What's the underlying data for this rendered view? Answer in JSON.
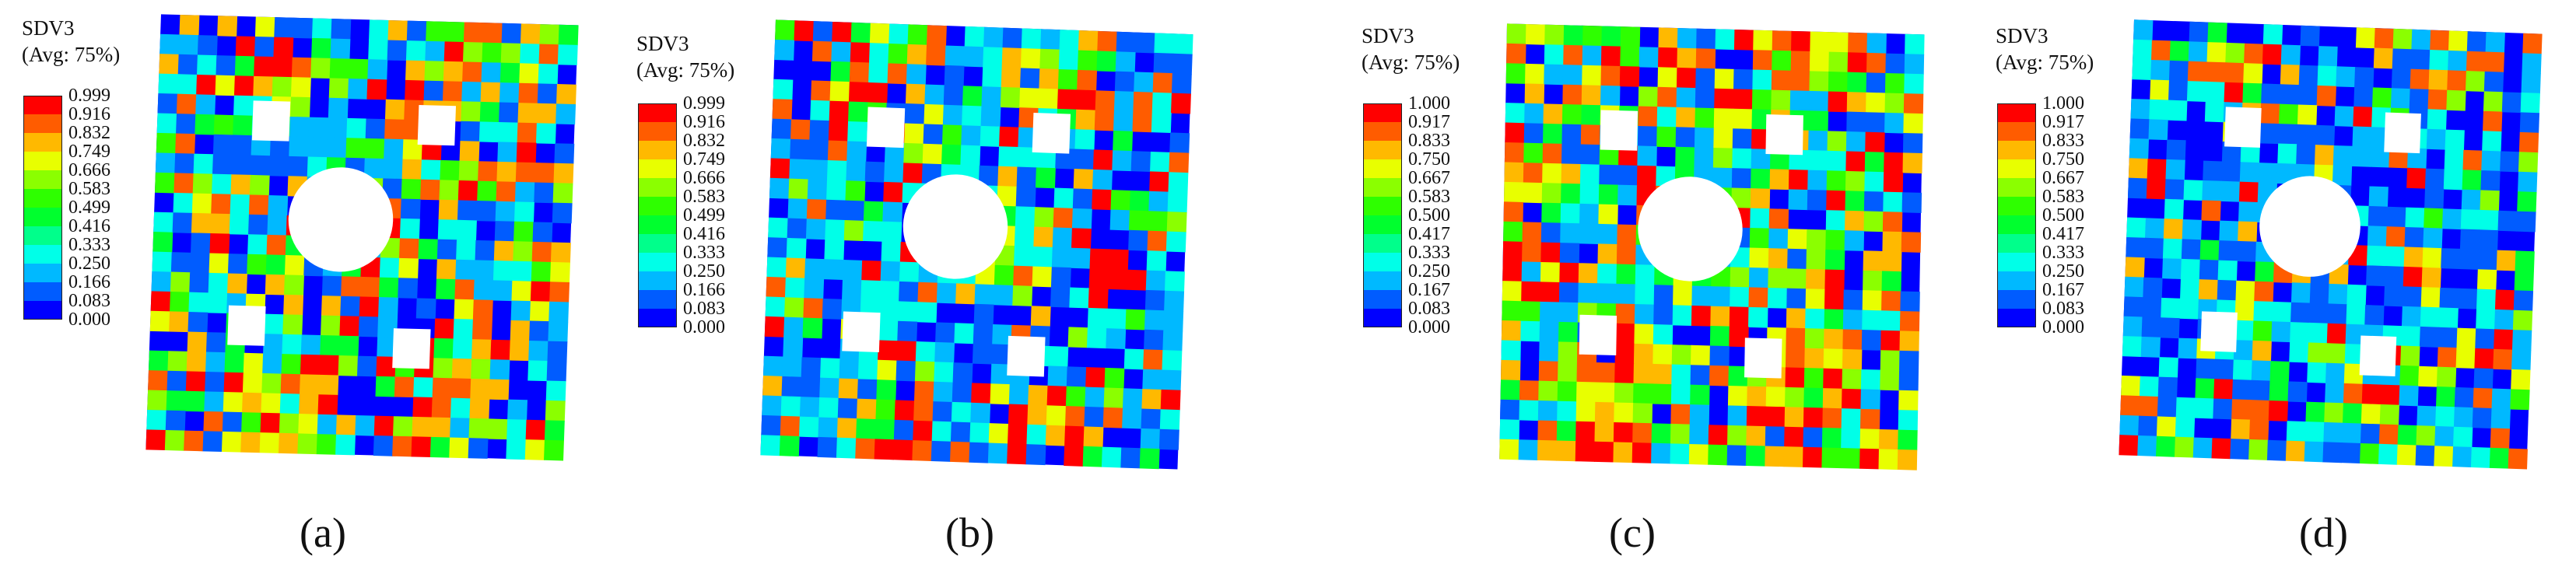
{
  "colors": [
    "#0000ff",
    "#005cff",
    "#00b9ff",
    "#00ffe8",
    "#00ff8b",
    "#00ff2e",
    "#2eff00",
    "#8bff00",
    "#e8ff00",
    "#ffb900",
    "#ff5c00",
    "#ff0000"
  ],
  "panels": [
    {
      "caption": "(a)",
      "legend_title_1": "SDV3",
      "legend_title_2": "(Avg: 75%)",
      "ticks": [
        "0.999",
        "0.916",
        "0.832",
        "0.749",
        "0.666",
        "0.583",
        "0.499",
        "0.416",
        "0.333",
        "0.250",
        "0.166",
        "0.083",
        "0.000"
      ]
    },
    {
      "caption": "(b)",
      "legend_title_1": "SDV3",
      "legend_title_2": "(Avg: 75%)",
      "ticks": [
        "0.999",
        "0.916",
        "0.832",
        "0.749",
        "0.666",
        "0.583",
        "0.499",
        "0.416",
        "0.333",
        "0.250",
        "0.166",
        "0.083",
        "0.000"
      ]
    },
    {
      "caption": "(c)",
      "legend_title_1": "SDV3",
      "legend_title_2": "(Avg: 75%)",
      "ticks": [
        "1.000",
        "0.917",
        "0.833",
        "0.750",
        "0.667",
        "0.583",
        "0.500",
        "0.417",
        "0.333",
        "0.250",
        "0.167",
        "0.083",
        "0.000"
      ]
    },
    {
      "caption": "(d)",
      "legend_title_1": "SDV3",
      "legend_title_2": "(Avg: 75%)",
      "ticks": [
        "1.000",
        "0.917",
        "0.833",
        "0.750",
        "0.667",
        "0.583",
        "0.500",
        "0.417",
        "0.333",
        "0.250",
        "0.167",
        "0.083",
        "0.000"
      ]
    }
  ]
}
